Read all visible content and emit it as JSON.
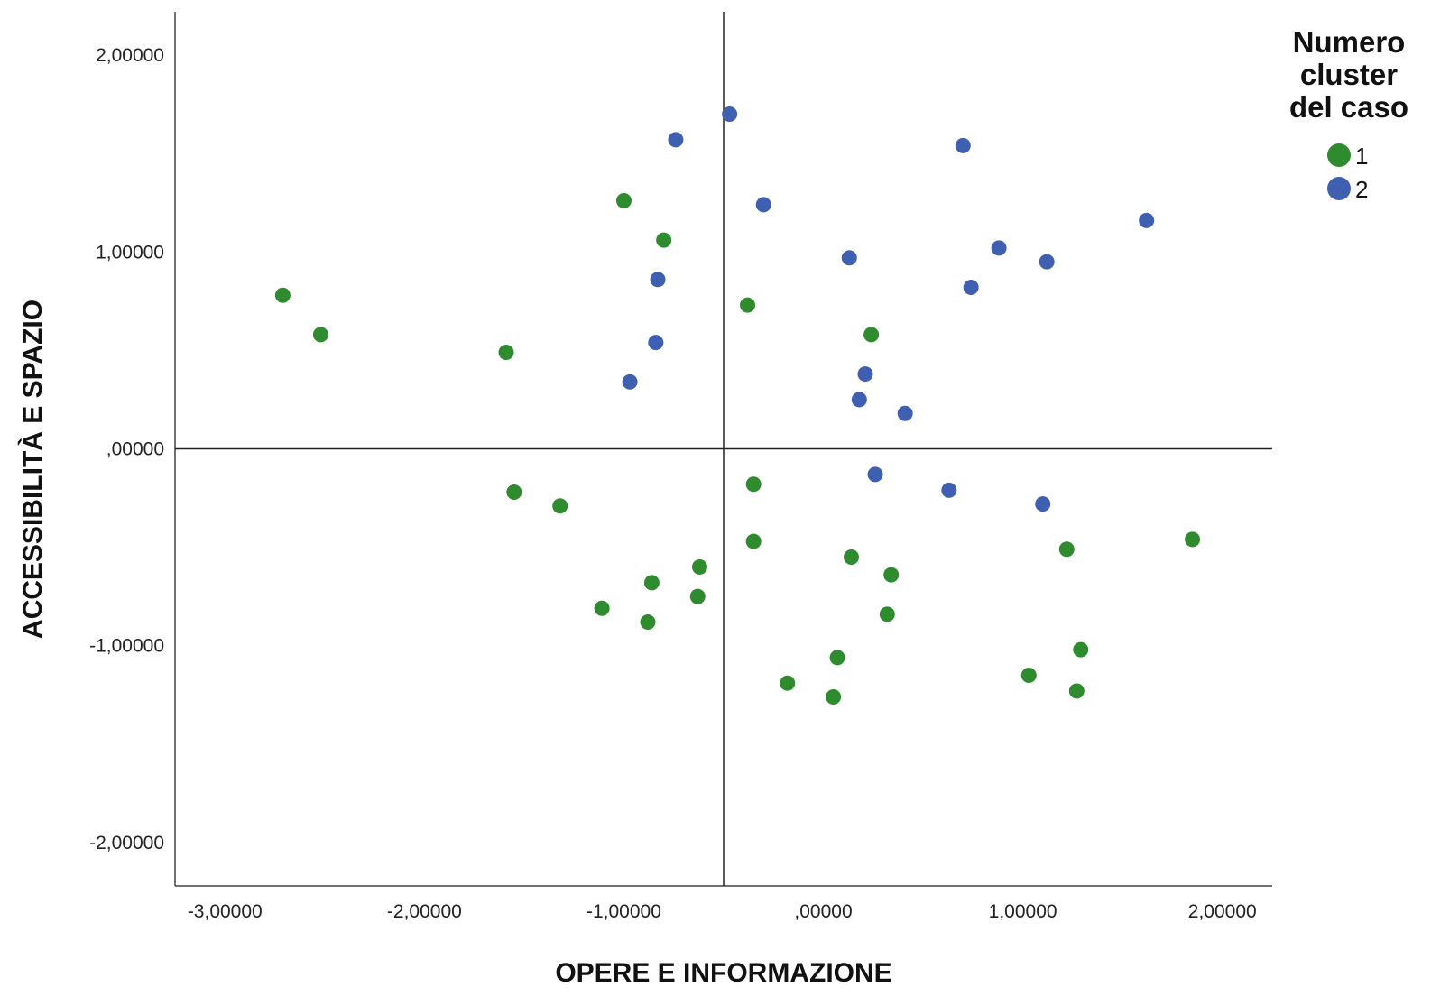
{
  "chart_data": {
    "type": "scatter",
    "title": "",
    "xlabel": "OPERE E INFORMAZIONE",
    "ylabel": "ACCESSIBILITÀ E SPAZIO",
    "xlim": [
      -3.25,
      2.25
    ],
    "ylim": [
      -2.22,
      2.22
    ],
    "x_ticks": [
      -3,
      -2,
      -1,
      0,
      1,
      2
    ],
    "x_tick_labels": [
      "-3,00000",
      "-2,00000",
      "-1,00000",
      ",00000",
      "1,00000",
      "2,00000"
    ],
    "y_ticks": [
      2,
      1,
      0,
      -1,
      -2
    ],
    "y_tick_labels": [
      "2,00000",
      "1,00000",
      ",00000",
      "-1,00000",
      "-2,00000"
    ],
    "reference_lines": {
      "x": -0.5,
      "y": 0.0
    },
    "grid": false,
    "legend": {
      "title": "Numero cluster del caso",
      "title_lines": [
        "Numero",
        "cluster",
        "del caso"
      ],
      "placement": "right"
    },
    "series": [
      {
        "name": "1",
        "color": "#2e8b2e",
        "points": [
          [
            -2.71,
            0.78
          ],
          [
            -2.52,
            0.58
          ],
          [
            -1.59,
            0.49
          ],
          [
            -1.0,
            1.26
          ],
          [
            -0.8,
            1.06
          ],
          [
            -0.38,
            0.73
          ],
          [
            0.24,
            0.58
          ],
          [
            -1.55,
            -0.22
          ],
          [
            -1.32,
            -0.29
          ],
          [
            -0.35,
            -0.18
          ],
          [
            -0.35,
            -0.47
          ],
          [
            -0.62,
            -0.6
          ],
          [
            -0.86,
            -0.68
          ],
          [
            -0.63,
            -0.75
          ],
          [
            -1.11,
            -0.81
          ],
          [
            -0.88,
            -0.88
          ],
          [
            0.14,
            -0.55
          ],
          [
            0.34,
            -0.64
          ],
          [
            0.32,
            -0.84
          ],
          [
            1.22,
            -0.51
          ],
          [
            1.85,
            -0.46
          ],
          [
            0.07,
            -1.06
          ],
          [
            1.29,
            -1.02
          ],
          [
            -0.18,
            -1.19
          ],
          [
            0.05,
            -1.26
          ],
          [
            1.03,
            -1.15
          ],
          [
            1.27,
            -1.23
          ]
        ]
      },
      {
        "name": "2",
        "color": "#3f5fb0",
        "points": [
          [
            -0.47,
            1.7
          ],
          [
            -0.74,
            1.57
          ],
          [
            0.7,
            1.54
          ],
          [
            -0.3,
            1.24
          ],
          [
            1.62,
            1.16
          ],
          [
            0.88,
            1.02
          ],
          [
            0.13,
            0.97
          ],
          [
            1.12,
            0.95
          ],
          [
            0.74,
            0.82
          ],
          [
            -0.83,
            0.86
          ],
          [
            -0.84,
            0.54
          ],
          [
            -0.97,
            0.34
          ],
          [
            0.21,
            0.38
          ],
          [
            0.18,
            0.25
          ],
          [
            0.41,
            0.18
          ],
          [
            0.26,
            -0.13
          ],
          [
            0.63,
            -0.21
          ],
          [
            1.1,
            -0.28
          ]
        ]
      }
    ]
  }
}
